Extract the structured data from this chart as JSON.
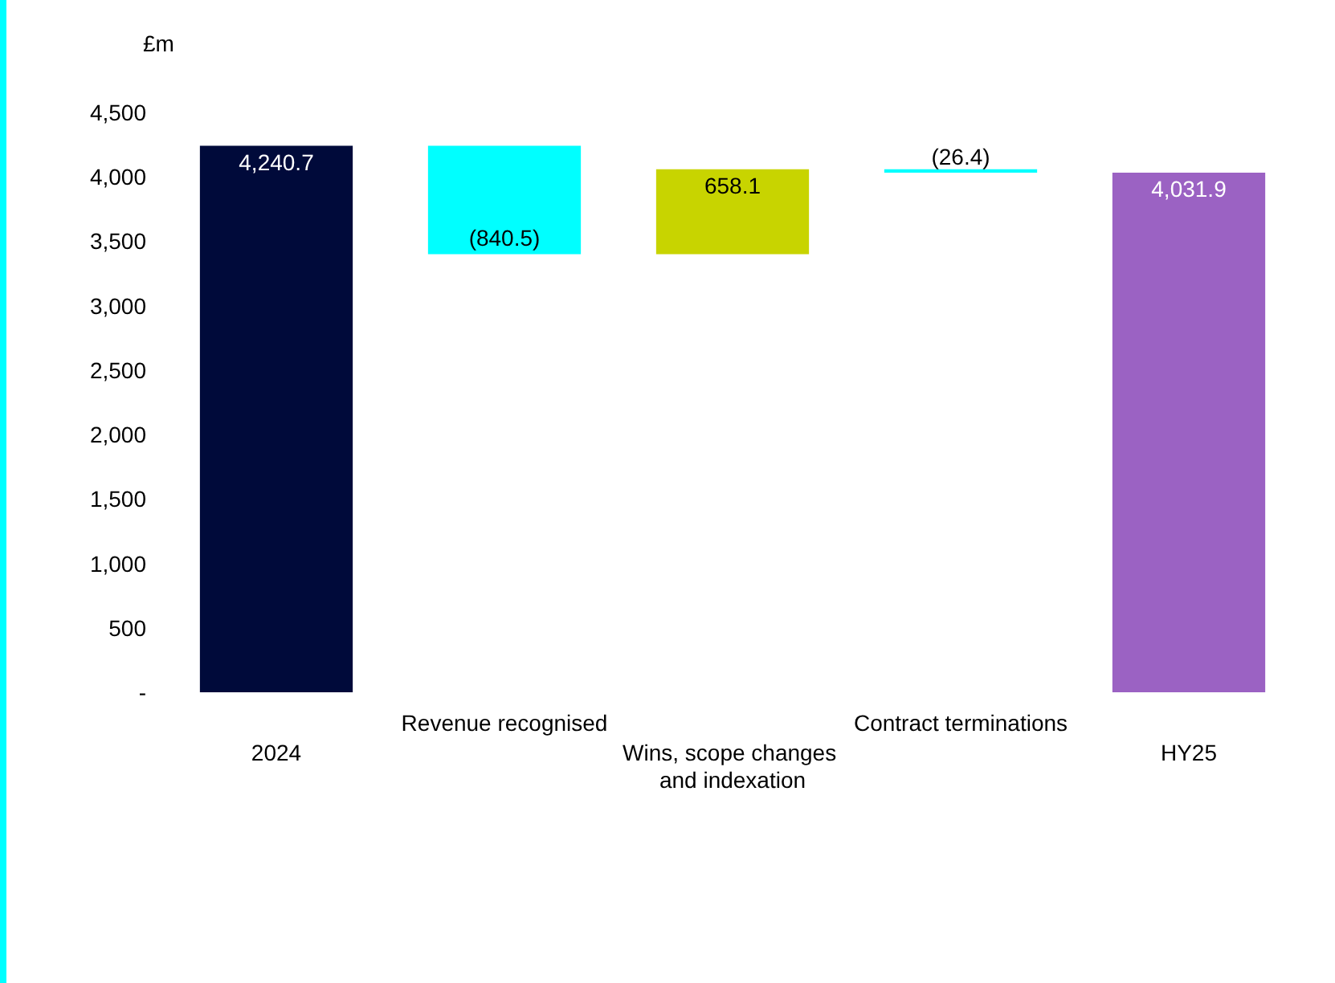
{
  "chart_data": {
    "type": "bar",
    "ylabel": "£m",
    "categories": [
      "2024",
      "Revenue recognised",
      "Wins, scope changes and indexation",
      "Contract terminations",
      "HY25"
    ],
    "values": [
      4240.7,
      -840.5,
      658.1,
      -26.4,
      4031.9
    ],
    "base": [
      0,
      4240.7,
      3400.2,
      4058.3,
      0
    ],
    "colors": [
      "#000a3a",
      "#00ffff",
      "#c8d400",
      "#00ffff",
      "#9b62c3"
    ],
    "value_labels": [
      "4,240.7",
      "(840.5)",
      "658.1",
      "(26.4)",
      "4,031.9"
    ],
    "ylim": [
      0,
      4500
    ],
    "yticks": [
      {
        "value": 0,
        "label": "-"
      },
      {
        "value": 500,
        "label": "500"
      },
      {
        "value": 1000,
        "label": "1,000"
      },
      {
        "value": 1500,
        "label": "1,500"
      },
      {
        "value": 2000,
        "label": "2,000"
      },
      {
        "value": 2500,
        "label": "2,500"
      },
      {
        "value": 3000,
        "label": "3,000"
      },
      {
        "value": 3500,
        "label": "3,500"
      },
      {
        "value": 4000,
        "label": "4,000"
      },
      {
        "value": 4500,
        "label": "4,500"
      }
    ],
    "grid": false
  }
}
